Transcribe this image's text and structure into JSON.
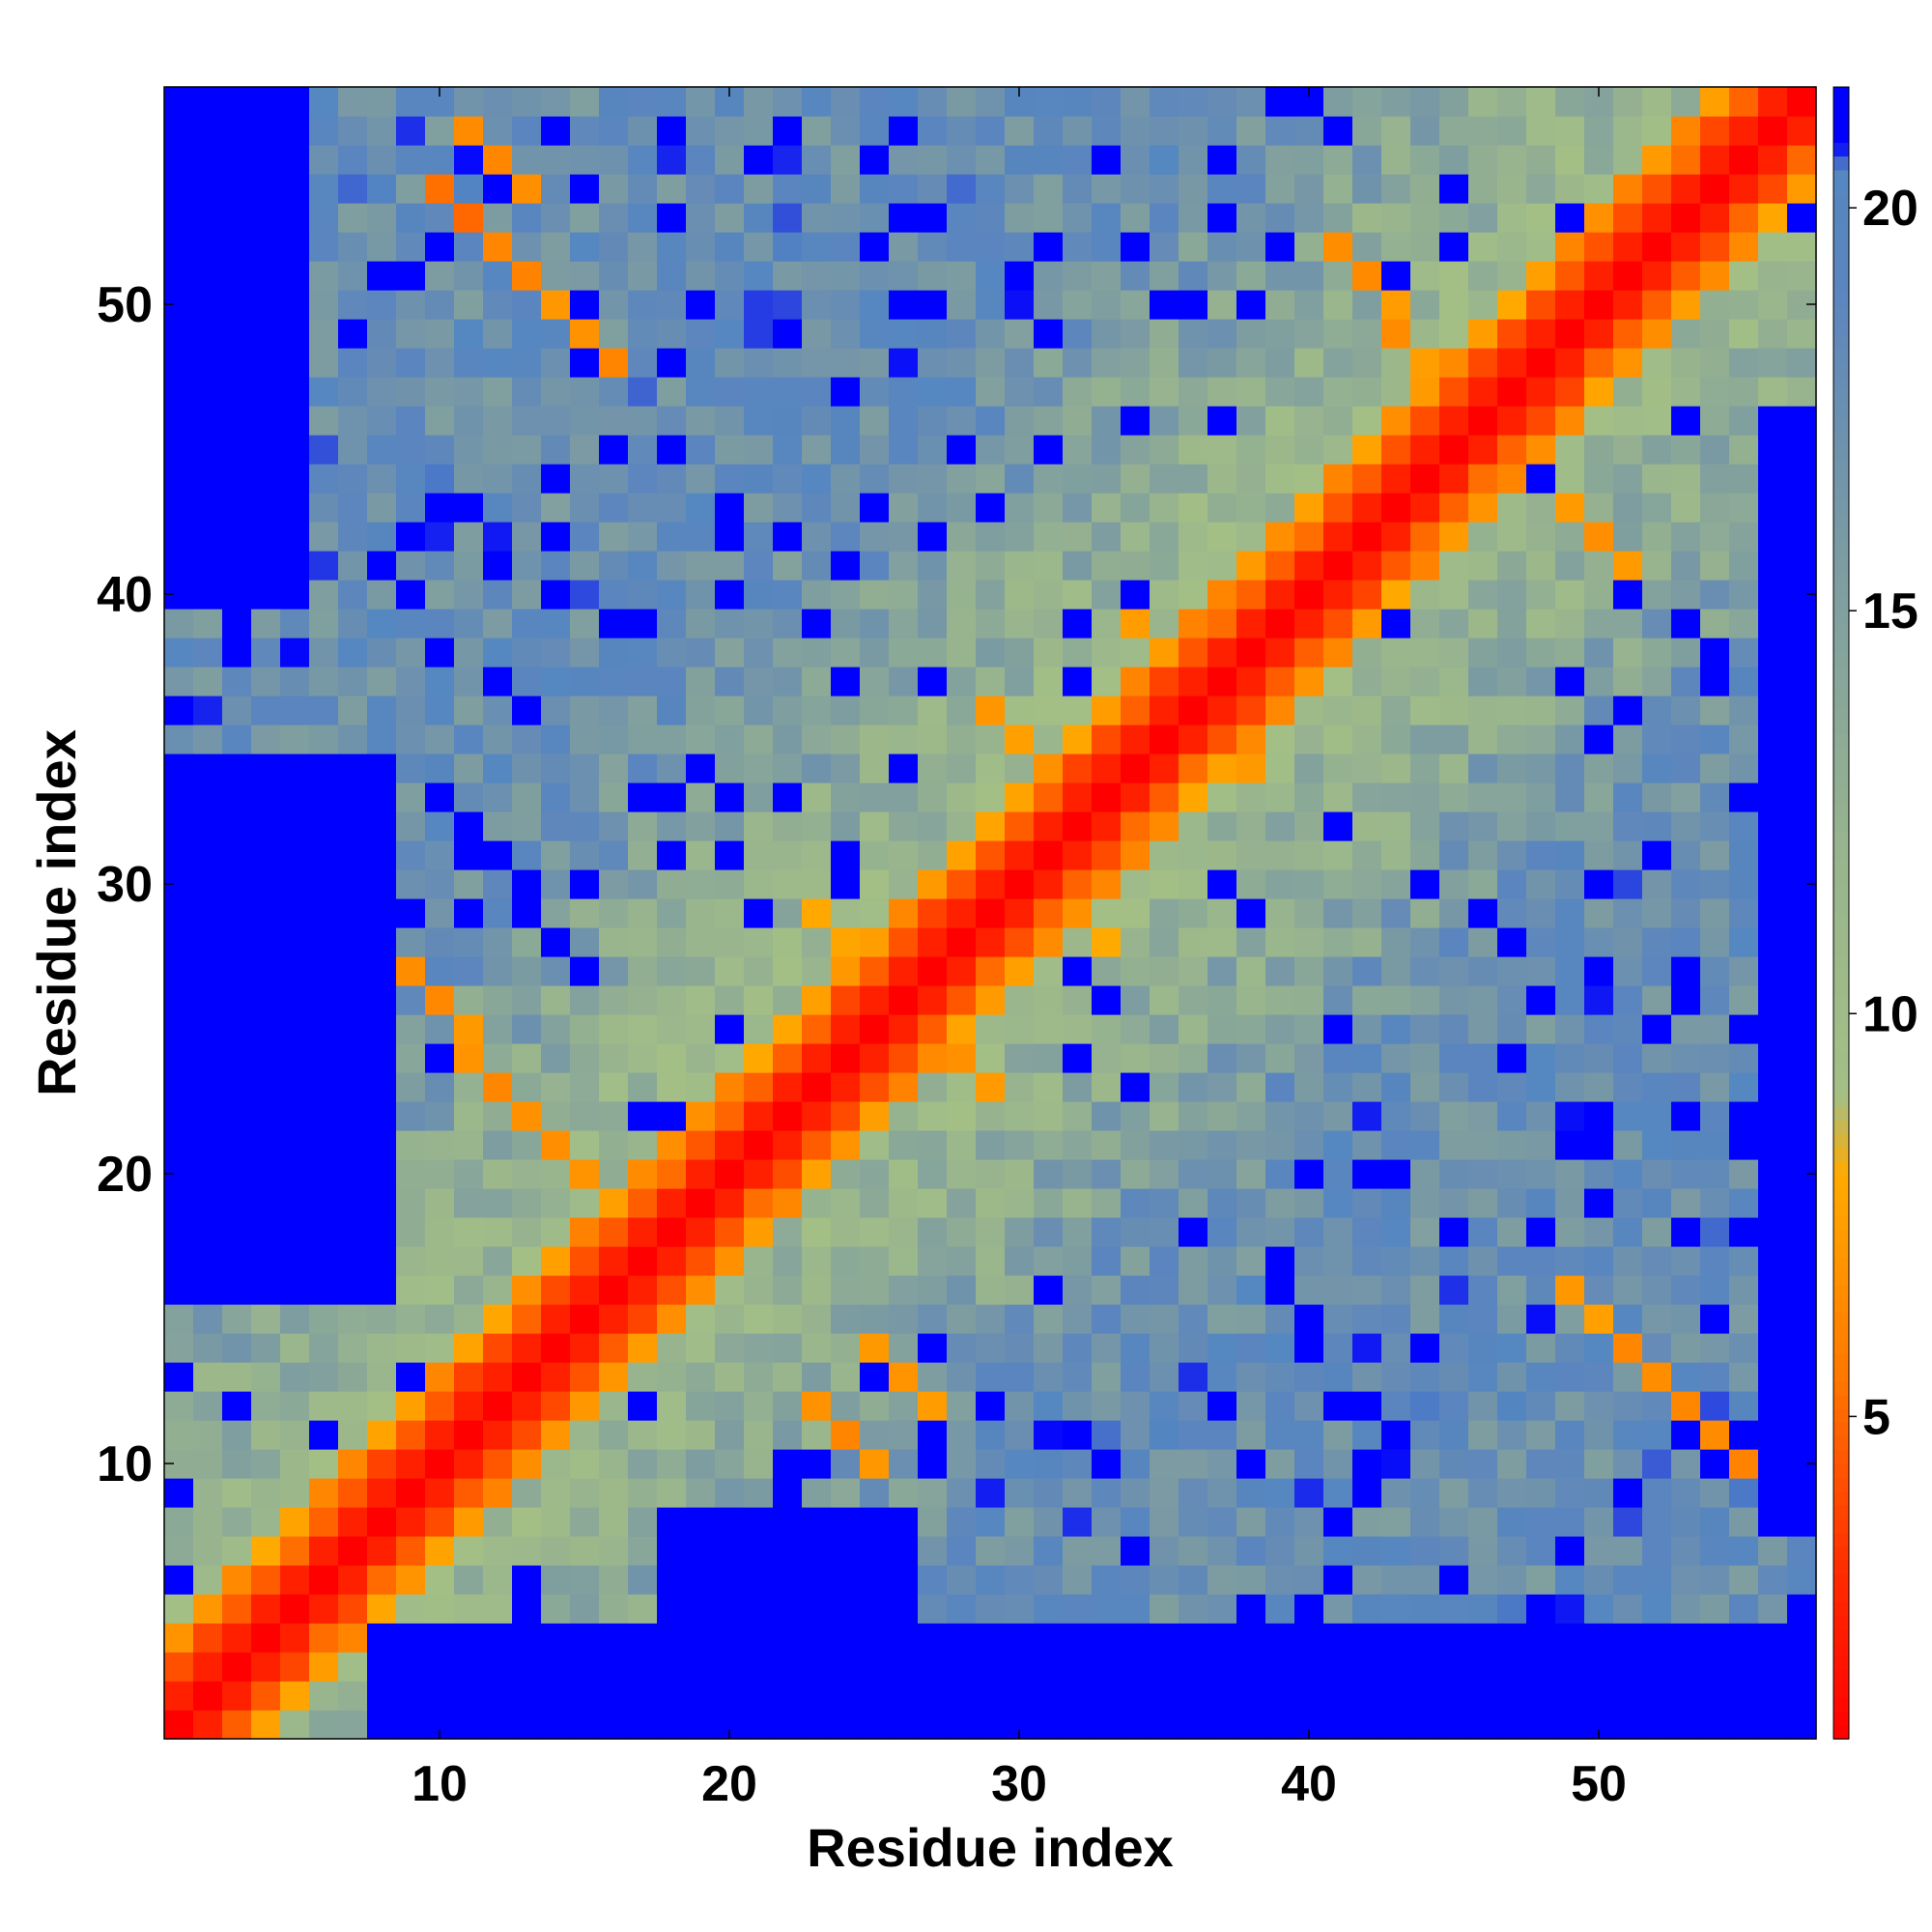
{
  "chart_data": {
    "type": "heatmap",
    "title": "",
    "xlabel": "Residue index",
    "ylabel": "Residue index",
    "n": 57,
    "x_range": [
      1,
      57
    ],
    "y_range": [
      1,
      57
    ],
    "x_ticks": [
      10,
      20,
      30,
      40,
      50
    ],
    "y_ticks": [
      10,
      20,
      30,
      40,
      50
    ],
    "colorbar": {
      "ticks": [
        5,
        10,
        15,
        20
      ],
      "range": [
        1,
        21.5
      ],
      "stops": [
        {
          "value": 1.0,
          "color": "#ff0000"
        },
        {
          "value": 3.0,
          "color": "#ff2a00"
        },
        {
          "value": 5.5,
          "color": "#ff7700"
        },
        {
          "value": 8.0,
          "color": "#ffaa00"
        },
        {
          "value": 9.0,
          "color": "#a3bf86"
        },
        {
          "value": 12.0,
          "color": "#98b48e"
        },
        {
          "value": 16.0,
          "color": "#7999a4"
        },
        {
          "value": 19.0,
          "color": "#5b85be"
        },
        {
          "value": 20.5,
          "color": "#5587c0"
        },
        {
          "value": 20.8,
          "color": "#0000ff"
        }
      ]
    },
    "description_of_values": "Pairwise residue distance map; symmetric-like banded structure",
    "diagonal_band": {
      "zero_offset": 1.0,
      "offset1": 2.5,
      "offset2": 4.5,
      "offset3": 7.0
    },
    "contact_hotspots": [
      {
        "i": 11,
        "j": 53,
        "value": 5.0
      },
      {
        "i": 13,
        "j": 51,
        "value": 6.0
      },
      {
        "i": 15,
        "j": 49,
        "value": 6.0
      },
      {
        "i": 12,
        "j": 55,
        "value": 6.0
      },
      {
        "i": 10,
        "j": 26,
        "value": 6.0
      },
      {
        "i": 12,
        "j": 23,
        "value": 6.0
      },
      {
        "i": 14,
        "j": 21,
        "value": 6.0
      },
      {
        "i": 24,
        "j": 11,
        "value": 6.0
      },
      {
        "i": 26,
        "j": 13,
        "value": 6.0
      },
      {
        "i": 50,
        "j": 15,
        "value": 6.0
      },
      {
        "i": 52,
        "j": 13,
        "value": 6.0
      },
      {
        "i": 54,
        "j": 11,
        "value": 6.0
      },
      {
        "i": 42,
        "j": 51,
        "value": 6.0
      },
      {
        "i": 44,
        "j": 48,
        "value": 6.0
      },
      {
        "i": 50,
        "j": 42,
        "value": 6.0
      },
      {
        "i": 35,
        "j": 38,
        "value": 6.5
      },
      {
        "i": 37,
        "j": 35,
        "value": 6.5
      },
      {
        "i": 28,
        "j": 24,
        "value": 6.5
      },
      {
        "i": 24,
        "j": 28,
        "value": 6.5
      },
      {
        "i": 30,
        "j": 35,
        "value": 7.0
      },
      {
        "i": 32,
        "j": 29,
        "value": 7.0
      }
    ],
    "far_blocks": [
      {
        "i0": 1,
        "i1": 5,
        "j0": 40,
        "j1": 57
      },
      {
        "i0": 1,
        "i1": 8,
        "j0": 16,
        "j1": 34
      },
      {
        "i0": 8,
        "i1": 57,
        "j0": 1,
        "j1": 4
      },
      {
        "i0": 18,
        "i1": 26,
        "j0": 1,
        "j1": 8
      },
      {
        "i0": 1,
        "i1": 3,
        "j0": 48,
        "j1": 57
      },
      {
        "i0": 39,
        "i1": 57,
        "j0": 1,
        "j1": 4
      },
      {
        "i0": 56,
        "i1": 57,
        "j0": 8,
        "j1": 46
      }
    ]
  }
}
